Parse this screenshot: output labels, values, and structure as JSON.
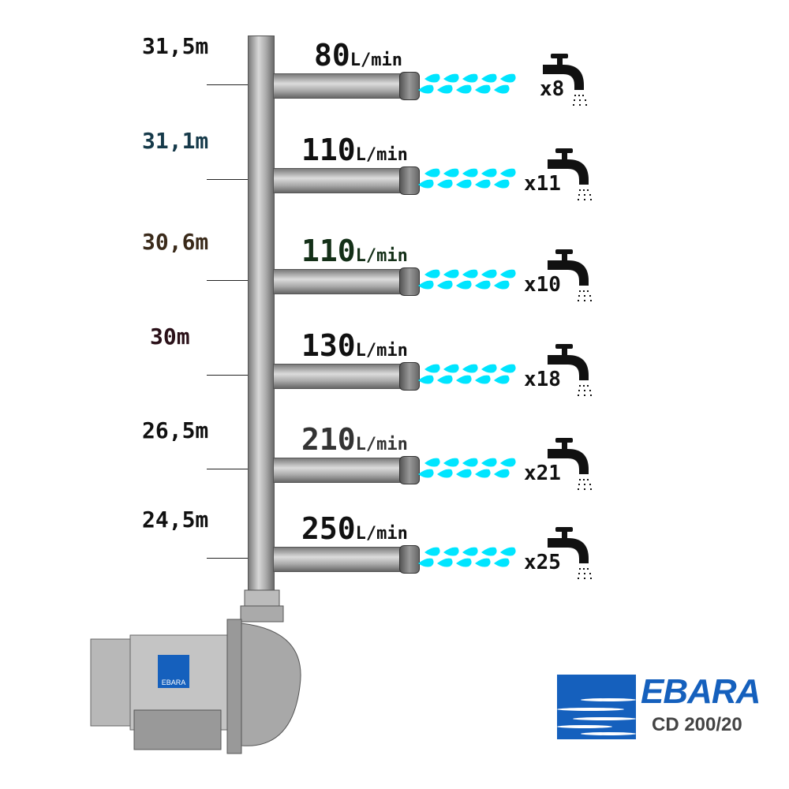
{
  "levels": [
    {
      "height": "31,5m",
      "flow": "80",
      "unit": "L/min",
      "taps": "x8",
      "height_color": "#111111",
      "flow_color": "#111111"
    },
    {
      "height": "31,1m",
      "flow": "110",
      "unit": "L/min",
      "taps": "x11",
      "height_color": "#163a4a",
      "flow_color": "#111111"
    },
    {
      "height": "30,6m",
      "flow": "110",
      "unit": "L/min",
      "taps": "x10",
      "height_color": "#3a2a1a",
      "flow_color": "#143018"
    },
    {
      "height": "30m",
      "flow": "130",
      "unit": "L/min",
      "taps": "x18",
      "height_color": "#2a1018",
      "flow_color": "#111111"
    },
    {
      "height": "26,5m",
      "flow": "210",
      "unit": "L/min",
      "taps": "x21",
      "height_color": "#111111",
      "flow_color": "#333333"
    },
    {
      "height": "24,5m",
      "flow": "250",
      "unit": "L/min",
      "taps": "x25",
      "height_color": "#111111",
      "flow_color": "#111111"
    }
  ],
  "pump": {
    "badge": "EBARA"
  },
  "brand": {
    "name": "EBARA",
    "model": "CD 200/20",
    "color": "#1560bd"
  },
  "water_color": "#00e5ff",
  "icons": {
    "tap": "faucet-icon",
    "water": "water-drops-icon"
  }
}
